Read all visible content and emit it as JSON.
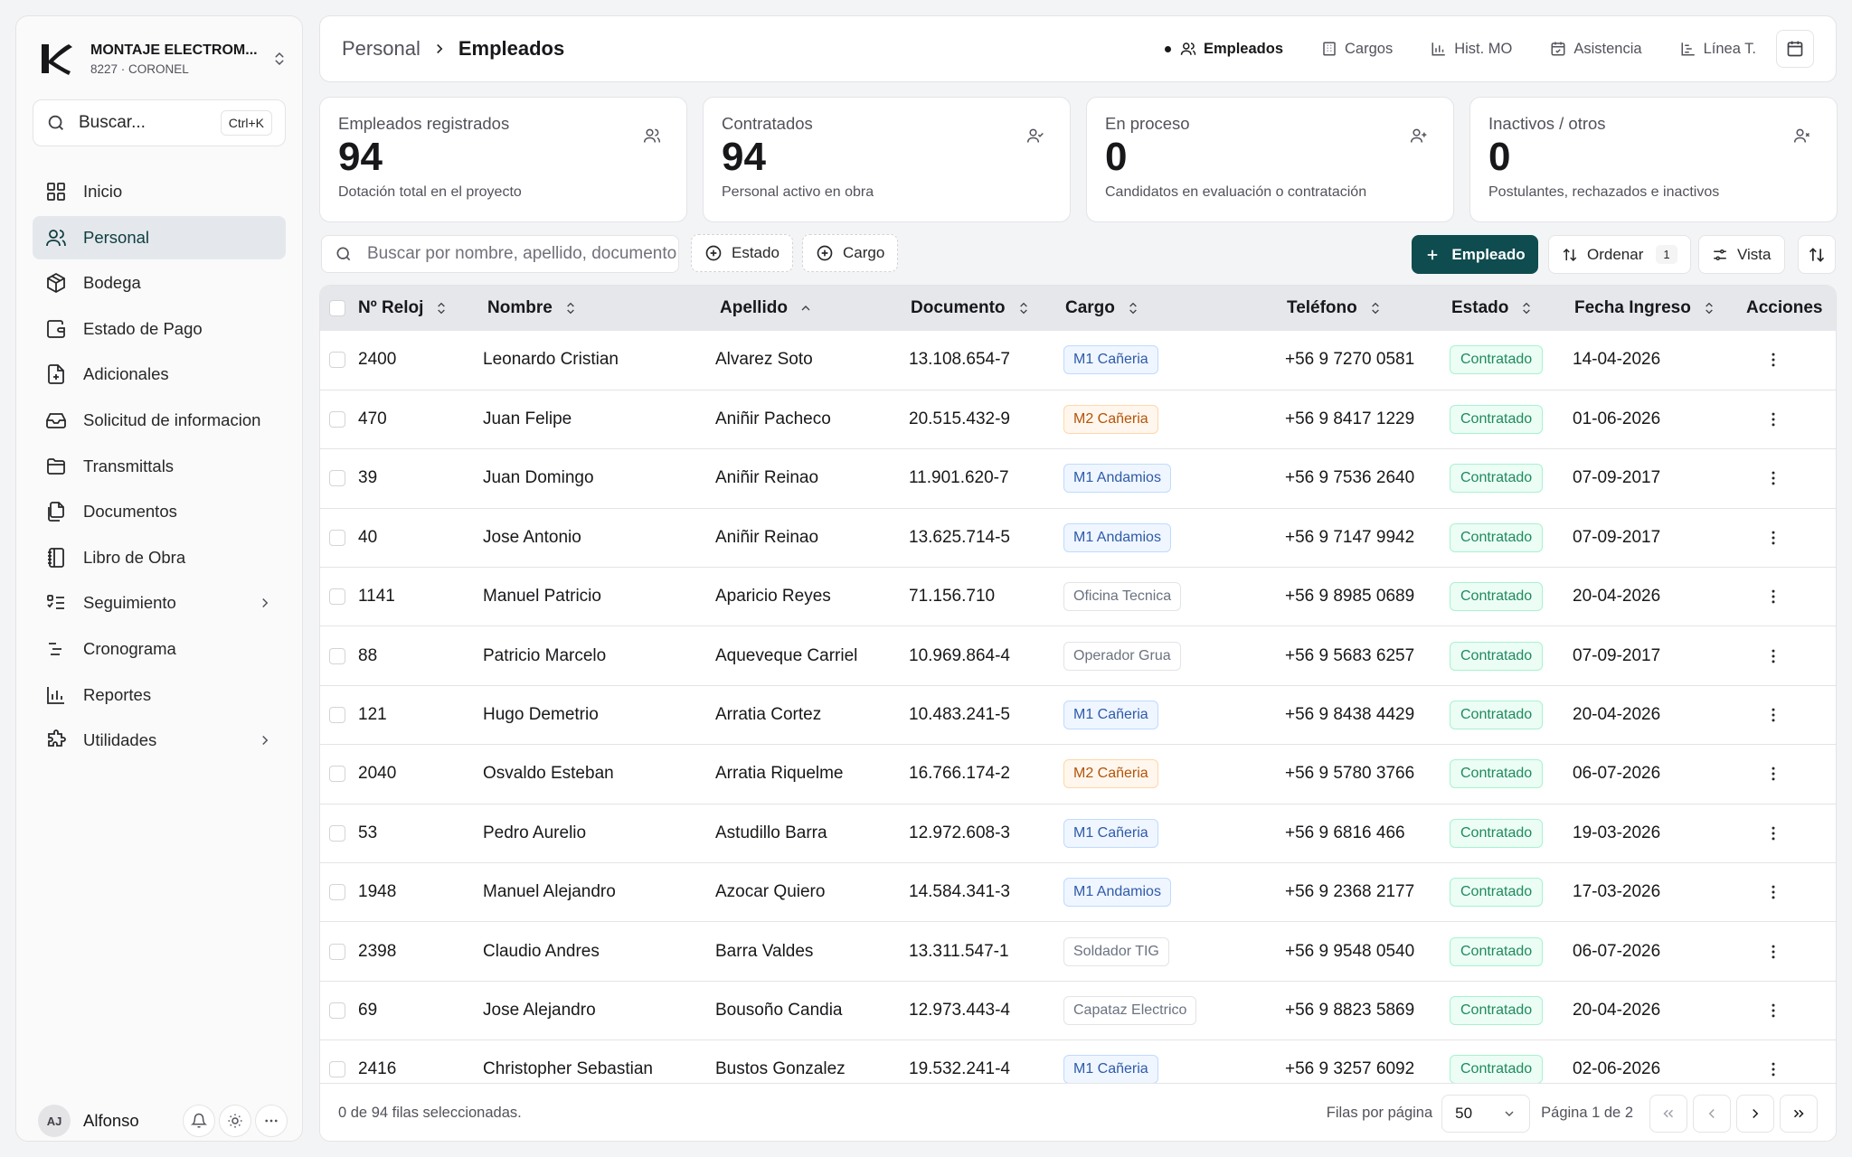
{
  "org": {
    "name": "MONTAJE ELECTROM...",
    "sub": "8227 · CORONEL"
  },
  "search": {
    "placeholder": "Buscar...",
    "shortcut": "Ctrl+K"
  },
  "nav": [
    {
      "label": "Inicio",
      "icon": "grid-icon"
    },
    {
      "label": "Personal",
      "icon": "users-icon",
      "active": true
    },
    {
      "label": "Bodega",
      "icon": "box-icon"
    },
    {
      "label": "Estado de Pago",
      "icon": "wallet-icon"
    },
    {
      "label": "Adicionales",
      "icon": "file-plus-icon"
    },
    {
      "label": "Solicitud de informacion",
      "icon": "inbox-icon"
    },
    {
      "label": "Transmittals",
      "icon": "folder-icon"
    },
    {
      "label": "Documentos",
      "icon": "files-icon"
    },
    {
      "label": "Libro de Obra",
      "icon": "notebook-icon"
    },
    {
      "label": "Seguimiento",
      "icon": "list-check-icon",
      "expandable": true
    },
    {
      "label": "Cronograma",
      "icon": "timeline-icon"
    },
    {
      "label": "Reportes",
      "icon": "bar-chart-icon"
    },
    {
      "label": "Utilidades",
      "icon": "puzzle-icon",
      "expandable": true
    }
  ],
  "user": {
    "initials": "AJ",
    "name": "Alfonso"
  },
  "breadcrumb": {
    "parent": "Personal",
    "current": "Empleados"
  },
  "toptabs": [
    {
      "label": "Empleados",
      "icon": "users-icon",
      "active": true
    },
    {
      "label": "Cargos",
      "icon": "building-icon"
    },
    {
      "label": "Hist. MO",
      "icon": "bar-chart-icon"
    },
    {
      "label": "Asistencia",
      "icon": "calendar-check-icon"
    },
    {
      "label": "Línea T.",
      "icon": "timeline-icon"
    }
  ],
  "stats": [
    {
      "title": "Empleados registrados",
      "value": "94",
      "desc": "Dotación total en el proyecto",
      "icon": "users-icon"
    },
    {
      "title": "Contratados",
      "value": "94",
      "desc": "Personal activo en obra",
      "icon": "user-check-icon"
    },
    {
      "title": "En proceso",
      "value": "0",
      "desc": "Candidatos en evaluación o contratación",
      "icon": "user-plus-icon"
    },
    {
      "title": "Inactivos / otros",
      "value": "0",
      "desc": "Postulantes, rechazados e inactivos",
      "icon": "user-x-icon"
    }
  ],
  "toolbar": {
    "search_placeholder": "Buscar por nombre, apellido, documento...",
    "filter_estado": "Estado",
    "filter_cargo": "Cargo",
    "add_label": "Empleado",
    "order_label": "Ordenar",
    "order_count": "1",
    "view_label": "Vista"
  },
  "table": {
    "columns": [
      "Nº Reloj",
      "Nombre",
      "Apellido",
      "Documento",
      "Cargo",
      "Teléfono",
      "Estado",
      "Fecha Ingreso",
      "Acciones"
    ],
    "rows": [
      {
        "reloj": "2400",
        "nombre": "Leonardo Cristian",
        "apellido": "Alvarez Soto",
        "doc": "13.108.654-7",
        "cargo": "M1 Cañeria",
        "cargo_color": "blue",
        "tel": "+56 9 7270 0581",
        "estado": "Contratado",
        "fecha": "14-04-2026"
      },
      {
        "reloj": "470",
        "nombre": "Juan Felipe",
        "apellido": "Aniñir Pacheco",
        "doc": "20.515.432-9",
        "cargo": "M2 Cañeria",
        "cargo_color": "orange",
        "tel": "+56 9 8417 1229",
        "estado": "Contratado",
        "fecha": "01-06-2026"
      },
      {
        "reloj": "39",
        "nombre": "Juan Domingo",
        "apellido": "Aniñir Reinao",
        "doc": "11.901.620-7",
        "cargo": "M1 Andamios",
        "cargo_color": "blue",
        "tel": "+56 9 7536 2640",
        "estado": "Contratado",
        "fecha": "07-09-2017"
      },
      {
        "reloj": "40",
        "nombre": "Jose Antonio",
        "apellido": "Aniñir Reinao",
        "doc": "13.625.714-5",
        "cargo": "M1 Andamios",
        "cargo_color": "blue",
        "tel": "+56 9 7147 9942",
        "estado": "Contratado",
        "fecha": "07-09-2017"
      },
      {
        "reloj": "1141",
        "nombre": "Manuel Patricio",
        "apellido": "Aparicio Reyes",
        "doc": "71.156.710",
        "cargo": "Oficina Tecnica",
        "cargo_color": "gray",
        "tel": "+56 9 8985 0689",
        "estado": "Contratado",
        "fecha": "20-04-2026"
      },
      {
        "reloj": "88",
        "nombre": "Patricio Marcelo",
        "apellido": "Aqueveque Carriel",
        "doc": "10.969.864-4",
        "cargo": "Operador Grua",
        "cargo_color": "gray",
        "tel": "+56 9 5683 6257",
        "estado": "Contratado",
        "fecha": "07-09-2017"
      },
      {
        "reloj": "121",
        "nombre": "Hugo Demetrio",
        "apellido": "Arratia Cortez",
        "doc": "10.483.241-5",
        "cargo": "M1 Cañeria",
        "cargo_color": "blue",
        "tel": "+56 9 8438 4429",
        "estado": "Contratado",
        "fecha": "20-04-2026"
      },
      {
        "reloj": "2040",
        "nombre": "Osvaldo Esteban",
        "apellido": "Arratia Riquelme",
        "doc": "16.766.174-2",
        "cargo": "M2 Cañeria",
        "cargo_color": "orange",
        "tel": "+56 9 5780 3766",
        "estado": "Contratado",
        "fecha": "06-07-2026"
      },
      {
        "reloj": "53",
        "nombre": "Pedro Aurelio",
        "apellido": "Astudillo Barra",
        "doc": "12.972.608-3",
        "cargo": "M1 Cañeria",
        "cargo_color": "blue",
        "tel": "+56 9 6816 466",
        "estado": "Contratado",
        "fecha": "19-03-2026"
      },
      {
        "reloj": "1948",
        "nombre": "Manuel Alejandro",
        "apellido": "Azocar Quiero",
        "doc": "14.584.341-3",
        "cargo": "M1 Andamios",
        "cargo_color": "blue",
        "tel": "+56 9 2368 2177",
        "estado": "Contratado",
        "fecha": "17-03-2026"
      },
      {
        "reloj": "2398",
        "nombre": "Claudio Andres",
        "apellido": "Barra Valdes",
        "doc": "13.311.547-1",
        "cargo": "Soldador TIG",
        "cargo_color": "gray",
        "tel": "+56 9 9548 0540",
        "estado": "Contratado",
        "fecha": "06-07-2026"
      },
      {
        "reloj": "69",
        "nombre": "Jose Alejandro",
        "apellido": "Bousoño Candia",
        "doc": "12.973.443-4",
        "cargo": "Capataz Electrico",
        "cargo_color": "gray",
        "tel": "+56 9 8823 5869",
        "estado": "Contratado",
        "fecha": "20-04-2026"
      },
      {
        "reloj": "2416",
        "nombre": "Christopher Sebastian",
        "apellido": "Bustos Gonzalez",
        "doc": "19.532.241-4",
        "cargo": "M1 Cañeria",
        "cargo_color": "blue",
        "tel": "+56 9 3257 6092",
        "estado": "Contratado",
        "fecha": "02-06-2026"
      }
    ]
  },
  "footer": {
    "selected": "0 de 94 filas seleccionadas.",
    "rows_per_page_label": "Filas por página",
    "rows_per_page": "50",
    "page": "Página 1 de 2"
  },
  "colors": {
    "primary": "#0f4c4f",
    "active_nav_bg": "#e4e8ec"
  }
}
